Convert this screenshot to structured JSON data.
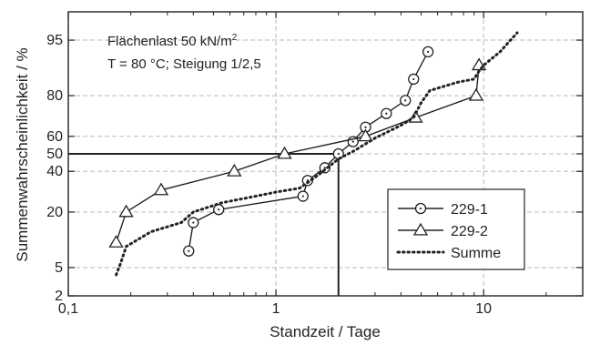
{
  "chart_data": {
    "type": "scatter",
    "xlabel": "Standzeit / Tage",
    "ylabel": "Summenwahrscheinlichkeit / %",
    "x_scale": "log",
    "y_scale": "normal-probability",
    "xlim": [
      0.1,
      30
    ],
    "ylim": [
      2,
      98
    ],
    "x_ticks": [
      {
        "value": 0.1,
        "label": "0,1"
      },
      {
        "value": 1,
        "label": "1"
      },
      {
        "value": 10,
        "label": "10"
      }
    ],
    "y_ticks": [
      {
        "value": 2,
        "label": "2"
      },
      {
        "value": 5,
        "label": "5"
      },
      {
        "value": 20,
        "label": "20"
      },
      {
        "value": 40,
        "label": "40"
      },
      {
        "value": 50,
        "label": "50"
      },
      {
        "value": 60,
        "label": "60"
      },
      {
        "value": 80,
        "label": "80"
      },
      {
        "value": 95,
        "label": "95"
      }
    ],
    "grid": true,
    "annotation": {
      "line1_prefix": "Flächenlast 50 kN/m",
      "line1_sup": "2",
      "line2": "T = 80 °C; Steigung 1/2,5"
    },
    "reference": {
      "x": 2.0,
      "y": 50
    },
    "legend_position": "bottom-right",
    "series": [
      {
        "name": "229-1",
        "marker": "circle",
        "x": [
          0.38,
          0.4,
          0.53,
          1.35,
          1.42,
          1.72,
          2.0,
          2.35,
          2.7,
          3.4,
          4.2,
          4.6,
          5.4
        ],
        "y": [
          8,
          16,
          21,
          27,
          35,
          42,
          50,
          57,
          65,
          72,
          78,
          86,
          93
        ]
      },
      {
        "name": "229-2",
        "marker": "triangle",
        "x": [
          0.17,
          0.19,
          0.28,
          0.63,
          1.1,
          2.7,
          4.7,
          9.2,
          9.5
        ],
        "y": [
          10,
          20,
          30,
          40,
          50,
          60,
          70,
          80,
          90
        ]
      },
      {
        "name": "Summe",
        "marker": "dotted-line",
        "x": [
          0.17,
          0.18,
          0.19,
          0.25,
          0.35,
          0.4,
          0.55,
          0.8,
          1.0,
          1.3,
          1.6,
          2.0,
          2.4,
          3.0,
          4.0,
          4.6,
          5.0,
          5.5,
          7.5,
          9.0,
          9.4,
          10.0,
          12.0,
          14.5
        ],
        "y": [
          4,
          6,
          9,
          13,
          16,
          20,
          24,
          27,
          29,
          31,
          38,
          47,
          52,
          59,
          66,
          70,
          77,
          82,
          85,
          86,
          88,
          90,
          93,
          96
        ]
      }
    ]
  }
}
